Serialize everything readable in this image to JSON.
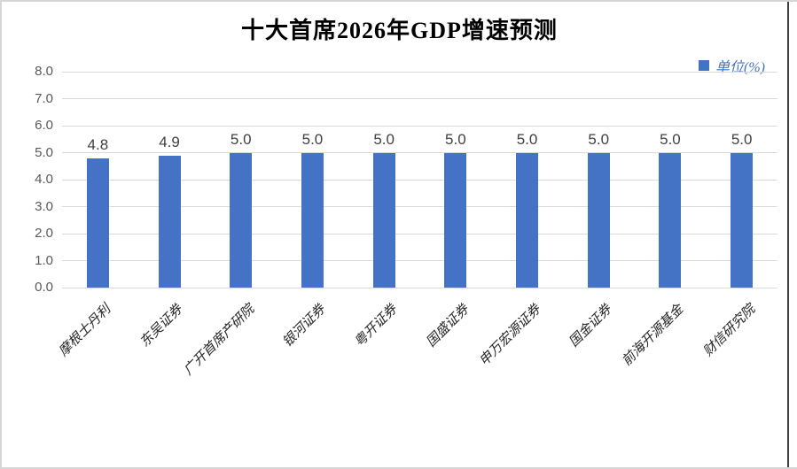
{
  "chart_data": {
    "type": "bar",
    "title": "十大首席2026年GDP增速预测",
    "categories": [
      "摩根士丹利",
      "东吴证券",
      "广开首席产研院",
      "银河证券",
      "粤开证券",
      "国盛证券",
      "申万宏源证券",
      "国金证券",
      "前海开源基金",
      "财信研究院"
    ],
    "values": [
      4.8,
      4.9,
      5.0,
      5.0,
      5.0,
      5.0,
      5.0,
      5.0,
      5.0,
      5.0
    ],
    "value_labels": [
      "4.8",
      "4.9",
      "5.0",
      "5.0",
      "5.0",
      "5.0",
      "5.0",
      "5.0",
      "5.0",
      "5.0"
    ],
    "xlabel": "",
    "ylabel": "",
    "ylim": [
      0.0,
      8.0
    ],
    "ytick_step": 1.0,
    "ytick_labels": [
      "0.0",
      "1.0",
      "2.0",
      "3.0",
      "4.0",
      "5.0",
      "6.0",
      "7.0",
      "8.0"
    ],
    "grid": true,
    "legend": {
      "label": "单位(%)",
      "position": "top-right"
    },
    "colors": {
      "bar": "#4472C4",
      "gridline": "#D9D9D9",
      "ytick_text": "#595959",
      "value_label_text": "#404040",
      "xtick_text": "#262626",
      "legend_text": "#4472C4"
    }
  }
}
